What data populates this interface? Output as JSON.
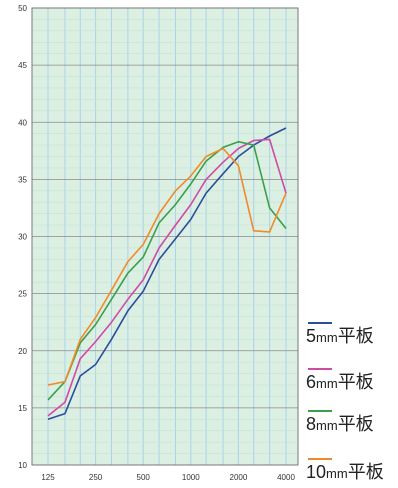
{
  "chart_data": {
    "type": "line",
    "title": "",
    "xlabel": "",
    "ylabel": "",
    "x_scale": "log",
    "x_ticks": [
      "125",
      "250",
      "500",
      "1000",
      "2000",
      "4000"
    ],
    "x_tick_values": [
      125,
      250,
      500,
      1000,
      2000,
      4000
    ],
    "y_ticks": [
      "10",
      "15",
      "20",
      "25",
      "30",
      "35",
      "40",
      "45",
      "50"
    ],
    "ylim": [
      10,
      50
    ],
    "grid": true,
    "legend_position": "right-bottom",
    "background_color": "#dcefe3",
    "x": [
      125,
      160,
      200,
      250,
      315,
      400,
      500,
      630,
      800,
      1000,
      1250,
      1600,
      2000,
      2500,
      3150,
      4000
    ],
    "series": [
      {
        "name": "5mm平板",
        "number": "5",
        "unit": "mm",
        "material": "平板",
        "color": "#2b4e9c",
        "values": [
          14.0,
          14.5,
          17.8,
          18.8,
          21.0,
          23.5,
          25.2,
          28.0,
          29.8,
          31.5,
          33.8,
          35.5,
          37.0,
          38.0,
          38.8,
          39.5
        ]
      },
      {
        "name": "6mm平板",
        "number": "6",
        "unit": "mm",
        "material": "平板",
        "color": "#d04aa8",
        "values": [
          14.3,
          15.5,
          19.3,
          20.8,
          22.5,
          24.5,
          26.2,
          29.0,
          31.0,
          32.8,
          35.0,
          36.5,
          37.7,
          38.4,
          38.5,
          33.8
        ]
      },
      {
        "name": "8mm平板",
        "number": "8",
        "unit": "mm",
        "material": "平板",
        "color": "#3aa04a",
        "values": [
          15.7,
          17.3,
          20.7,
          22.3,
          24.5,
          26.8,
          28.2,
          31.2,
          32.8,
          34.6,
          36.6,
          37.8,
          38.3,
          38.0,
          32.5,
          30.7
        ]
      },
      {
        "name": "10mm平板",
        "number": "10",
        "unit": "mm",
        "material": "平板",
        "color": "#f08a2a",
        "values": [
          17.0,
          17.3,
          21.0,
          22.9,
          25.3,
          27.8,
          29.3,
          32.0,
          34.0,
          35.3,
          37.0,
          37.7,
          36.2,
          30.5,
          30.4,
          33.8
        ]
      }
    ]
  }
}
